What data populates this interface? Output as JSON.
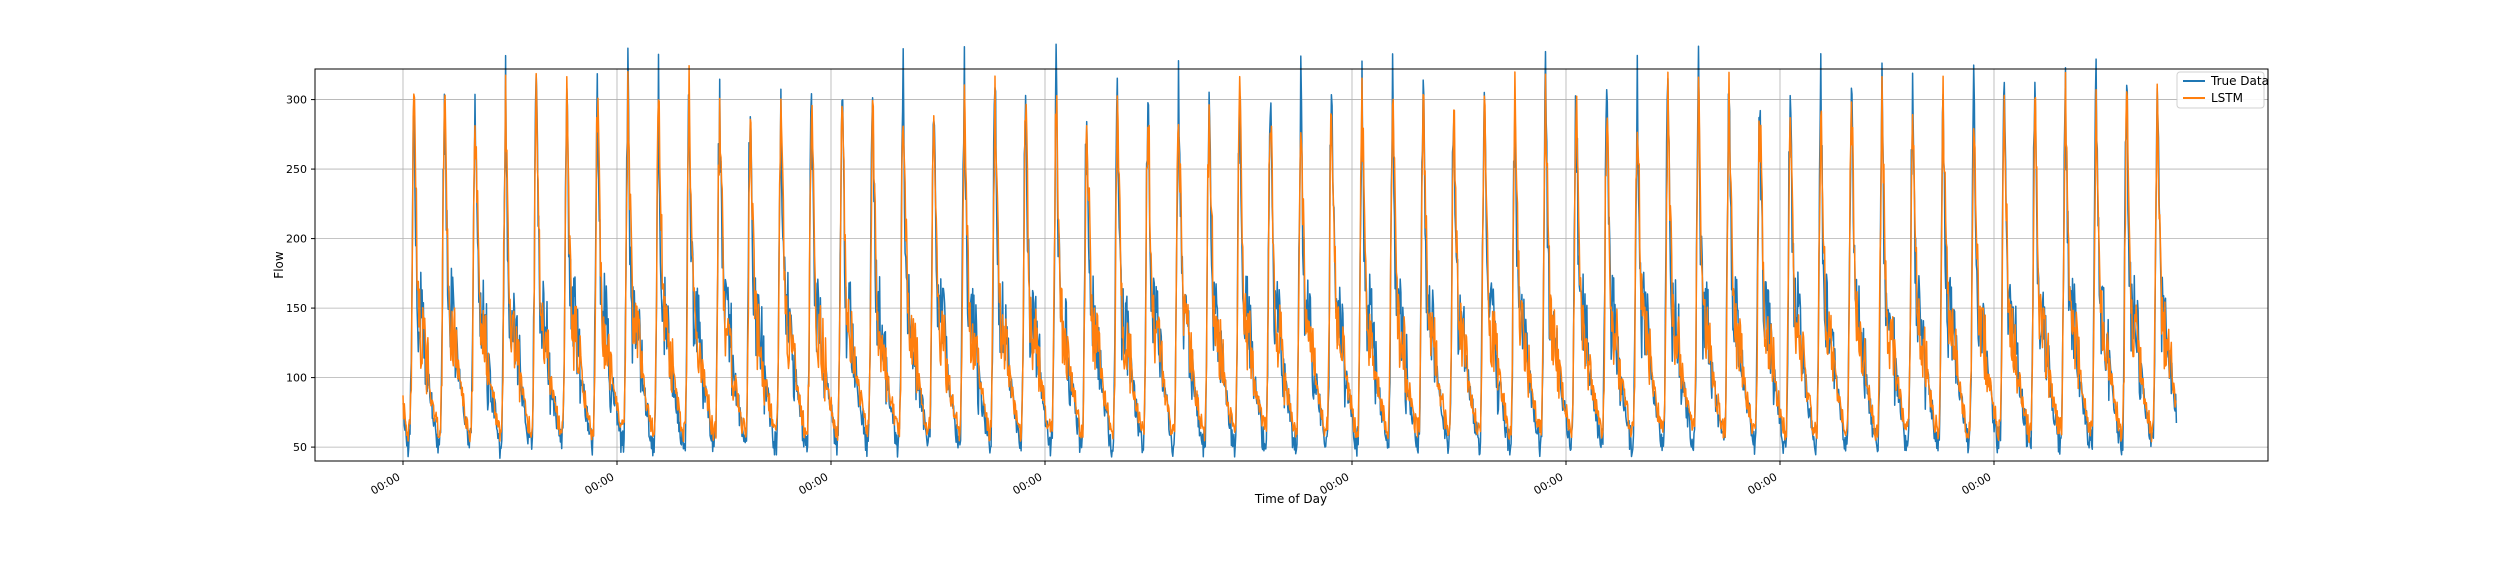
{
  "chart_data": {
    "type": "line",
    "title": "",
    "xlabel": "Time of Day",
    "ylabel": "Flow",
    "ylim": [
      40,
      322
    ],
    "yticks": [
      50,
      100,
      150,
      200,
      250,
      300
    ],
    "x_tick_labels": [
      "00:00",
      "00:00",
      "00:00",
      "00:00",
      "00:00",
      "00:00",
      "00:00",
      "00:00"
    ],
    "grid": true,
    "legend": {
      "placement": "top-right"
    },
    "n_days": 58,
    "daily_profile": {
      "hours": [
        0,
        2,
        4,
        5.5,
        6.5,
        7.5,
        8.5,
        10,
        12,
        14,
        16,
        17.5,
        18.5,
        20,
        22,
        24
      ],
      "true_flow": [
        75,
        60,
        52,
        56,
        120,
        240,
        310,
        210,
        140,
        150,
        135,
        125,
        105,
        100,
        85,
        75
      ],
      "lstm_flow": [
        80,
        68,
        62,
        64,
        115,
        230,
        300,
        235,
        150,
        130,
        128,
        120,
        110,
        102,
        88,
        80
      ]
    },
    "series": [
      {
        "name": "True Data",
        "color": "#1f77b4"
      },
      {
        "name": "LSTM",
        "color": "#ff7f0e"
      }
    ]
  }
}
